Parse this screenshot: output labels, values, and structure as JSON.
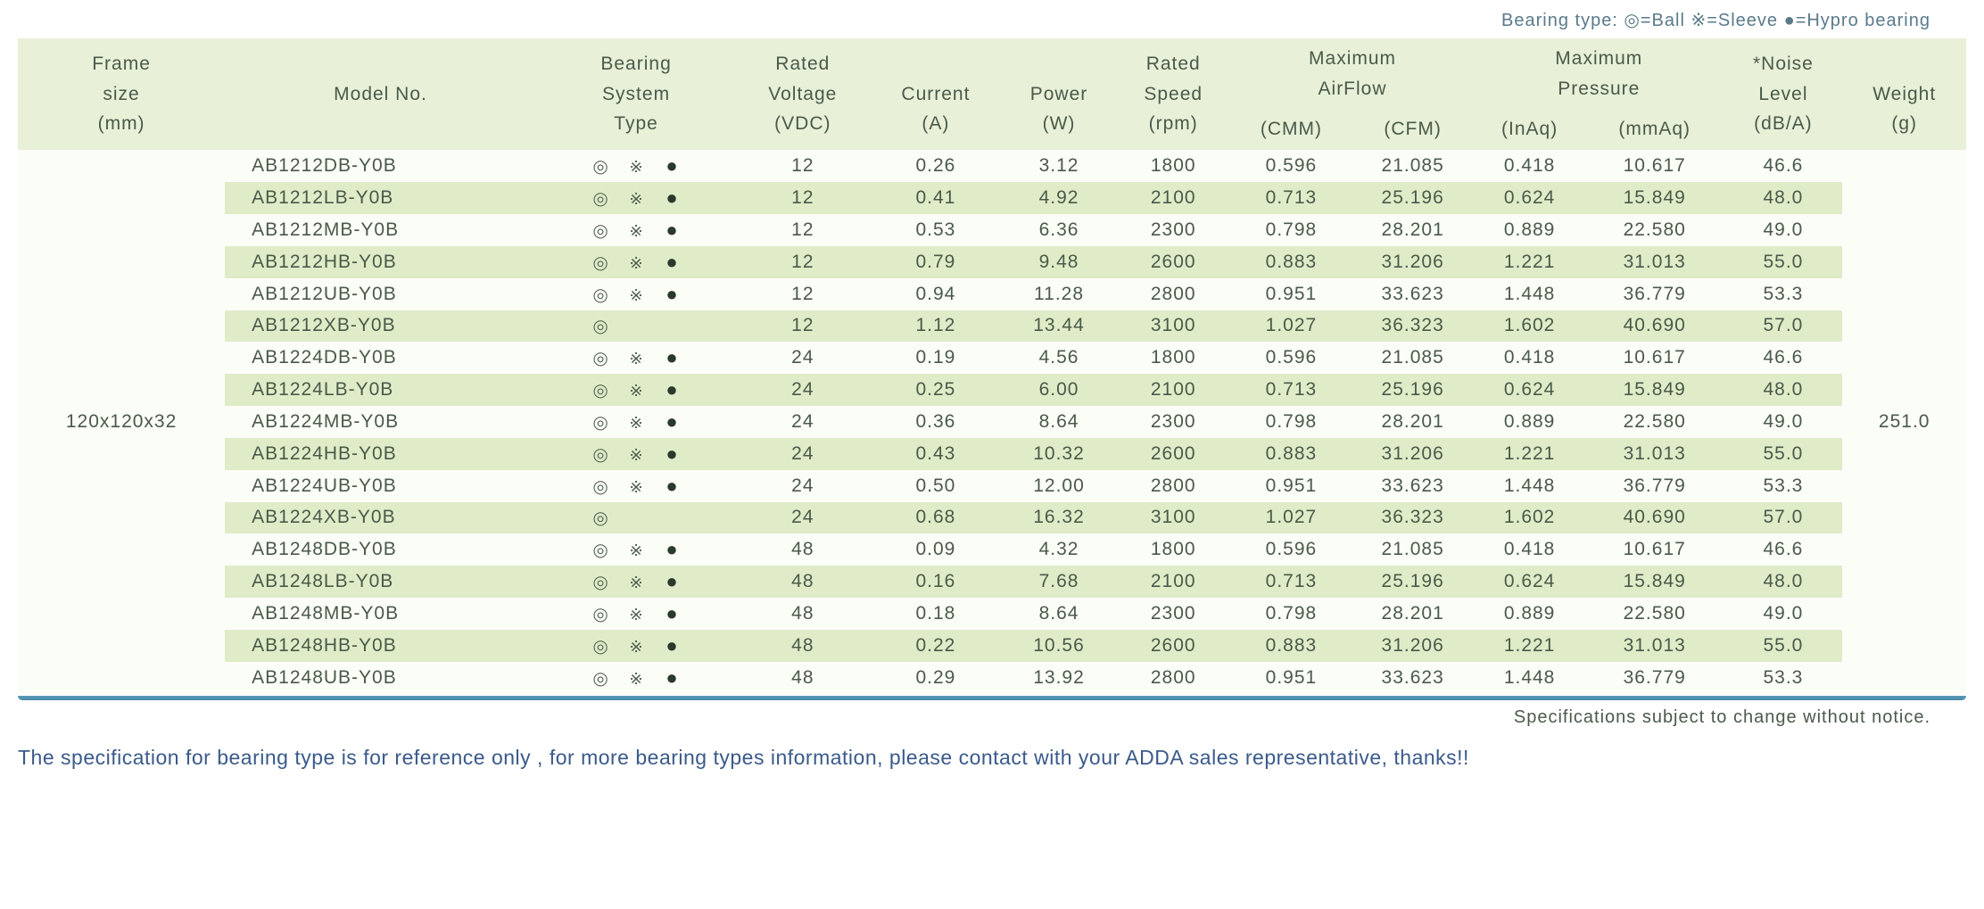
{
  "legend": "Bearing type:  ◎=Ball ※=Sleeve ●=Hypro bearing",
  "headers": {
    "frame": [
      "Frame",
      "size",
      "(mm)"
    ],
    "model": [
      "Model No."
    ],
    "bearing": [
      "Bearing",
      "System",
      "Type"
    ],
    "voltage": [
      "Rated",
      "Voltage",
      "(VDC)"
    ],
    "current": [
      "Current",
      "(A)"
    ],
    "power": [
      "Power",
      "(W)"
    ],
    "speed": [
      "Rated",
      "Speed",
      "(rpm)"
    ],
    "airflow_label": [
      "Maximum",
      "AirFlow"
    ],
    "airflow_cmm": "(CMM)",
    "airflow_cfm": "(CFM)",
    "pressure_label": [
      "Maximum",
      "Pressure"
    ],
    "pressure_inaq": "(InAq)",
    "pressure_mmaq": "(mmAq)",
    "noise": [
      "*Noise",
      "Level",
      "(dB/A)"
    ],
    "weight": [
      "Weight",
      "(g)"
    ]
  },
  "frame_size": "120x120x32",
  "weight": "251.0",
  "bearing_icons": {
    "ball": "◎",
    "sleeve": "※",
    "hypro": "●"
  },
  "rows": [
    {
      "model": "AB1212DB-Y0B",
      "ball": true,
      "sleeve": true,
      "hypro": true,
      "voltage": "12",
      "current": "0.26",
      "power": "3.12",
      "speed": "1800",
      "cmm": "0.596",
      "cfm": "21.085",
      "inaq": "0.418",
      "mmaq": "10.617",
      "noise": "46.6"
    },
    {
      "model": "AB1212LB-Y0B",
      "ball": true,
      "sleeve": true,
      "hypro": true,
      "voltage": "12",
      "current": "0.41",
      "power": "4.92",
      "speed": "2100",
      "cmm": "0.713",
      "cfm": "25.196",
      "inaq": "0.624",
      "mmaq": "15.849",
      "noise": "48.0"
    },
    {
      "model": "AB1212MB-Y0B",
      "ball": true,
      "sleeve": true,
      "hypro": true,
      "voltage": "12",
      "current": "0.53",
      "power": "6.36",
      "speed": "2300",
      "cmm": "0.798",
      "cfm": "28.201",
      "inaq": "0.889",
      "mmaq": "22.580",
      "noise": "49.0"
    },
    {
      "model": "AB1212HB-Y0B",
      "ball": true,
      "sleeve": true,
      "hypro": true,
      "voltage": "12",
      "current": "0.79",
      "power": "9.48",
      "speed": "2600",
      "cmm": "0.883",
      "cfm": "31.206",
      "inaq": "1.221",
      "mmaq": "31.013",
      "noise": "55.0"
    },
    {
      "model": "AB1212UB-Y0B",
      "ball": true,
      "sleeve": true,
      "hypro": true,
      "voltage": "12",
      "current": "0.94",
      "power": "11.28",
      "speed": "2800",
      "cmm": "0.951",
      "cfm": "33.623",
      "inaq": "1.448",
      "mmaq": "36.779",
      "noise": "53.3"
    },
    {
      "model": "AB1212XB-Y0B",
      "ball": true,
      "sleeve": false,
      "hypro": false,
      "voltage": "12",
      "current": "1.12",
      "power": "13.44",
      "speed": "3100",
      "cmm": "1.027",
      "cfm": "36.323",
      "inaq": "1.602",
      "mmaq": "40.690",
      "noise": "57.0"
    },
    {
      "model": "AB1224DB-Y0B",
      "ball": true,
      "sleeve": true,
      "hypro": true,
      "voltage": "24",
      "current": "0.19",
      "power": "4.56",
      "speed": "1800",
      "cmm": "0.596",
      "cfm": "21.085",
      "inaq": "0.418",
      "mmaq": "10.617",
      "noise": "46.6"
    },
    {
      "model": "AB1224LB-Y0B",
      "ball": true,
      "sleeve": true,
      "hypro": true,
      "voltage": "24",
      "current": "0.25",
      "power": "6.00",
      "speed": "2100",
      "cmm": "0.713",
      "cfm": "25.196",
      "inaq": "0.624",
      "mmaq": "15.849",
      "noise": "48.0"
    },
    {
      "model": "AB1224MB-Y0B",
      "ball": true,
      "sleeve": true,
      "hypro": true,
      "voltage": "24",
      "current": "0.36",
      "power": "8.64",
      "speed": "2300",
      "cmm": "0.798",
      "cfm": "28.201",
      "inaq": "0.889",
      "mmaq": "22.580",
      "noise": "49.0"
    },
    {
      "model": "AB1224HB-Y0B",
      "ball": true,
      "sleeve": true,
      "hypro": true,
      "voltage": "24",
      "current": "0.43",
      "power": "10.32",
      "speed": "2600",
      "cmm": "0.883",
      "cfm": "31.206",
      "inaq": "1.221",
      "mmaq": "31.013",
      "noise": "55.0"
    },
    {
      "model": "AB1224UB-Y0B",
      "ball": true,
      "sleeve": true,
      "hypro": true,
      "voltage": "24",
      "current": "0.50",
      "power": "12.00",
      "speed": "2800",
      "cmm": "0.951",
      "cfm": "33.623",
      "inaq": "1.448",
      "mmaq": "36.779",
      "noise": "53.3"
    },
    {
      "model": "AB1224XB-Y0B",
      "ball": true,
      "sleeve": false,
      "hypro": false,
      "voltage": "24",
      "current": "0.68",
      "power": "16.32",
      "speed": "3100",
      "cmm": "1.027",
      "cfm": "36.323",
      "inaq": "1.602",
      "mmaq": "40.690",
      "noise": "57.0"
    },
    {
      "model": "AB1248DB-Y0B",
      "ball": true,
      "sleeve": true,
      "hypro": true,
      "voltage": "48",
      "current": "0.09",
      "power": "4.32",
      "speed": "1800",
      "cmm": "0.596",
      "cfm": "21.085",
      "inaq": "0.418",
      "mmaq": "10.617",
      "noise": "46.6"
    },
    {
      "model": "AB1248LB-Y0B",
      "ball": true,
      "sleeve": true,
      "hypro": true,
      "voltage": "48",
      "current": "0.16",
      "power": "7.68",
      "speed": "2100",
      "cmm": "0.713",
      "cfm": "25.196",
      "inaq": "0.624",
      "mmaq": "15.849",
      "noise": "48.0"
    },
    {
      "model": "AB1248MB-Y0B",
      "ball": true,
      "sleeve": true,
      "hypro": true,
      "voltage": "48",
      "current": "0.18",
      "power": "8.64",
      "speed": "2300",
      "cmm": "0.798",
      "cfm": "28.201",
      "inaq": "0.889",
      "mmaq": "22.580",
      "noise": "49.0"
    },
    {
      "model": "AB1248HB-Y0B",
      "ball": true,
      "sleeve": true,
      "hypro": true,
      "voltage": "48",
      "current": "0.22",
      "power": "10.56",
      "speed": "2600",
      "cmm": "0.883",
      "cfm": "31.206",
      "inaq": "1.221",
      "mmaq": "31.013",
      "noise": "55.0"
    },
    {
      "model": "AB1248UB-Y0B",
      "ball": true,
      "sleeve": true,
      "hypro": true,
      "voltage": "48",
      "current": "0.29",
      "power": "13.92",
      "speed": "2800",
      "cmm": "0.951",
      "cfm": "33.623",
      "inaq": "1.448",
      "mmaq": "36.779",
      "noise": "53.3"
    }
  ],
  "notice": "Specifications subject to change without notice.",
  "footnote": "The specification for bearing type is for reference only , for more bearing types information, please contact with your ADDA sales representative, thanks!!",
  "colors": {
    "header_bg": "#e8f0d8",
    "row_odd": "#fbfdf7",
    "row_even": "#e0ecc8",
    "text": "#4a5a4a",
    "footnote": "#3a5a8a",
    "legend": "#5a7a8a"
  }
}
